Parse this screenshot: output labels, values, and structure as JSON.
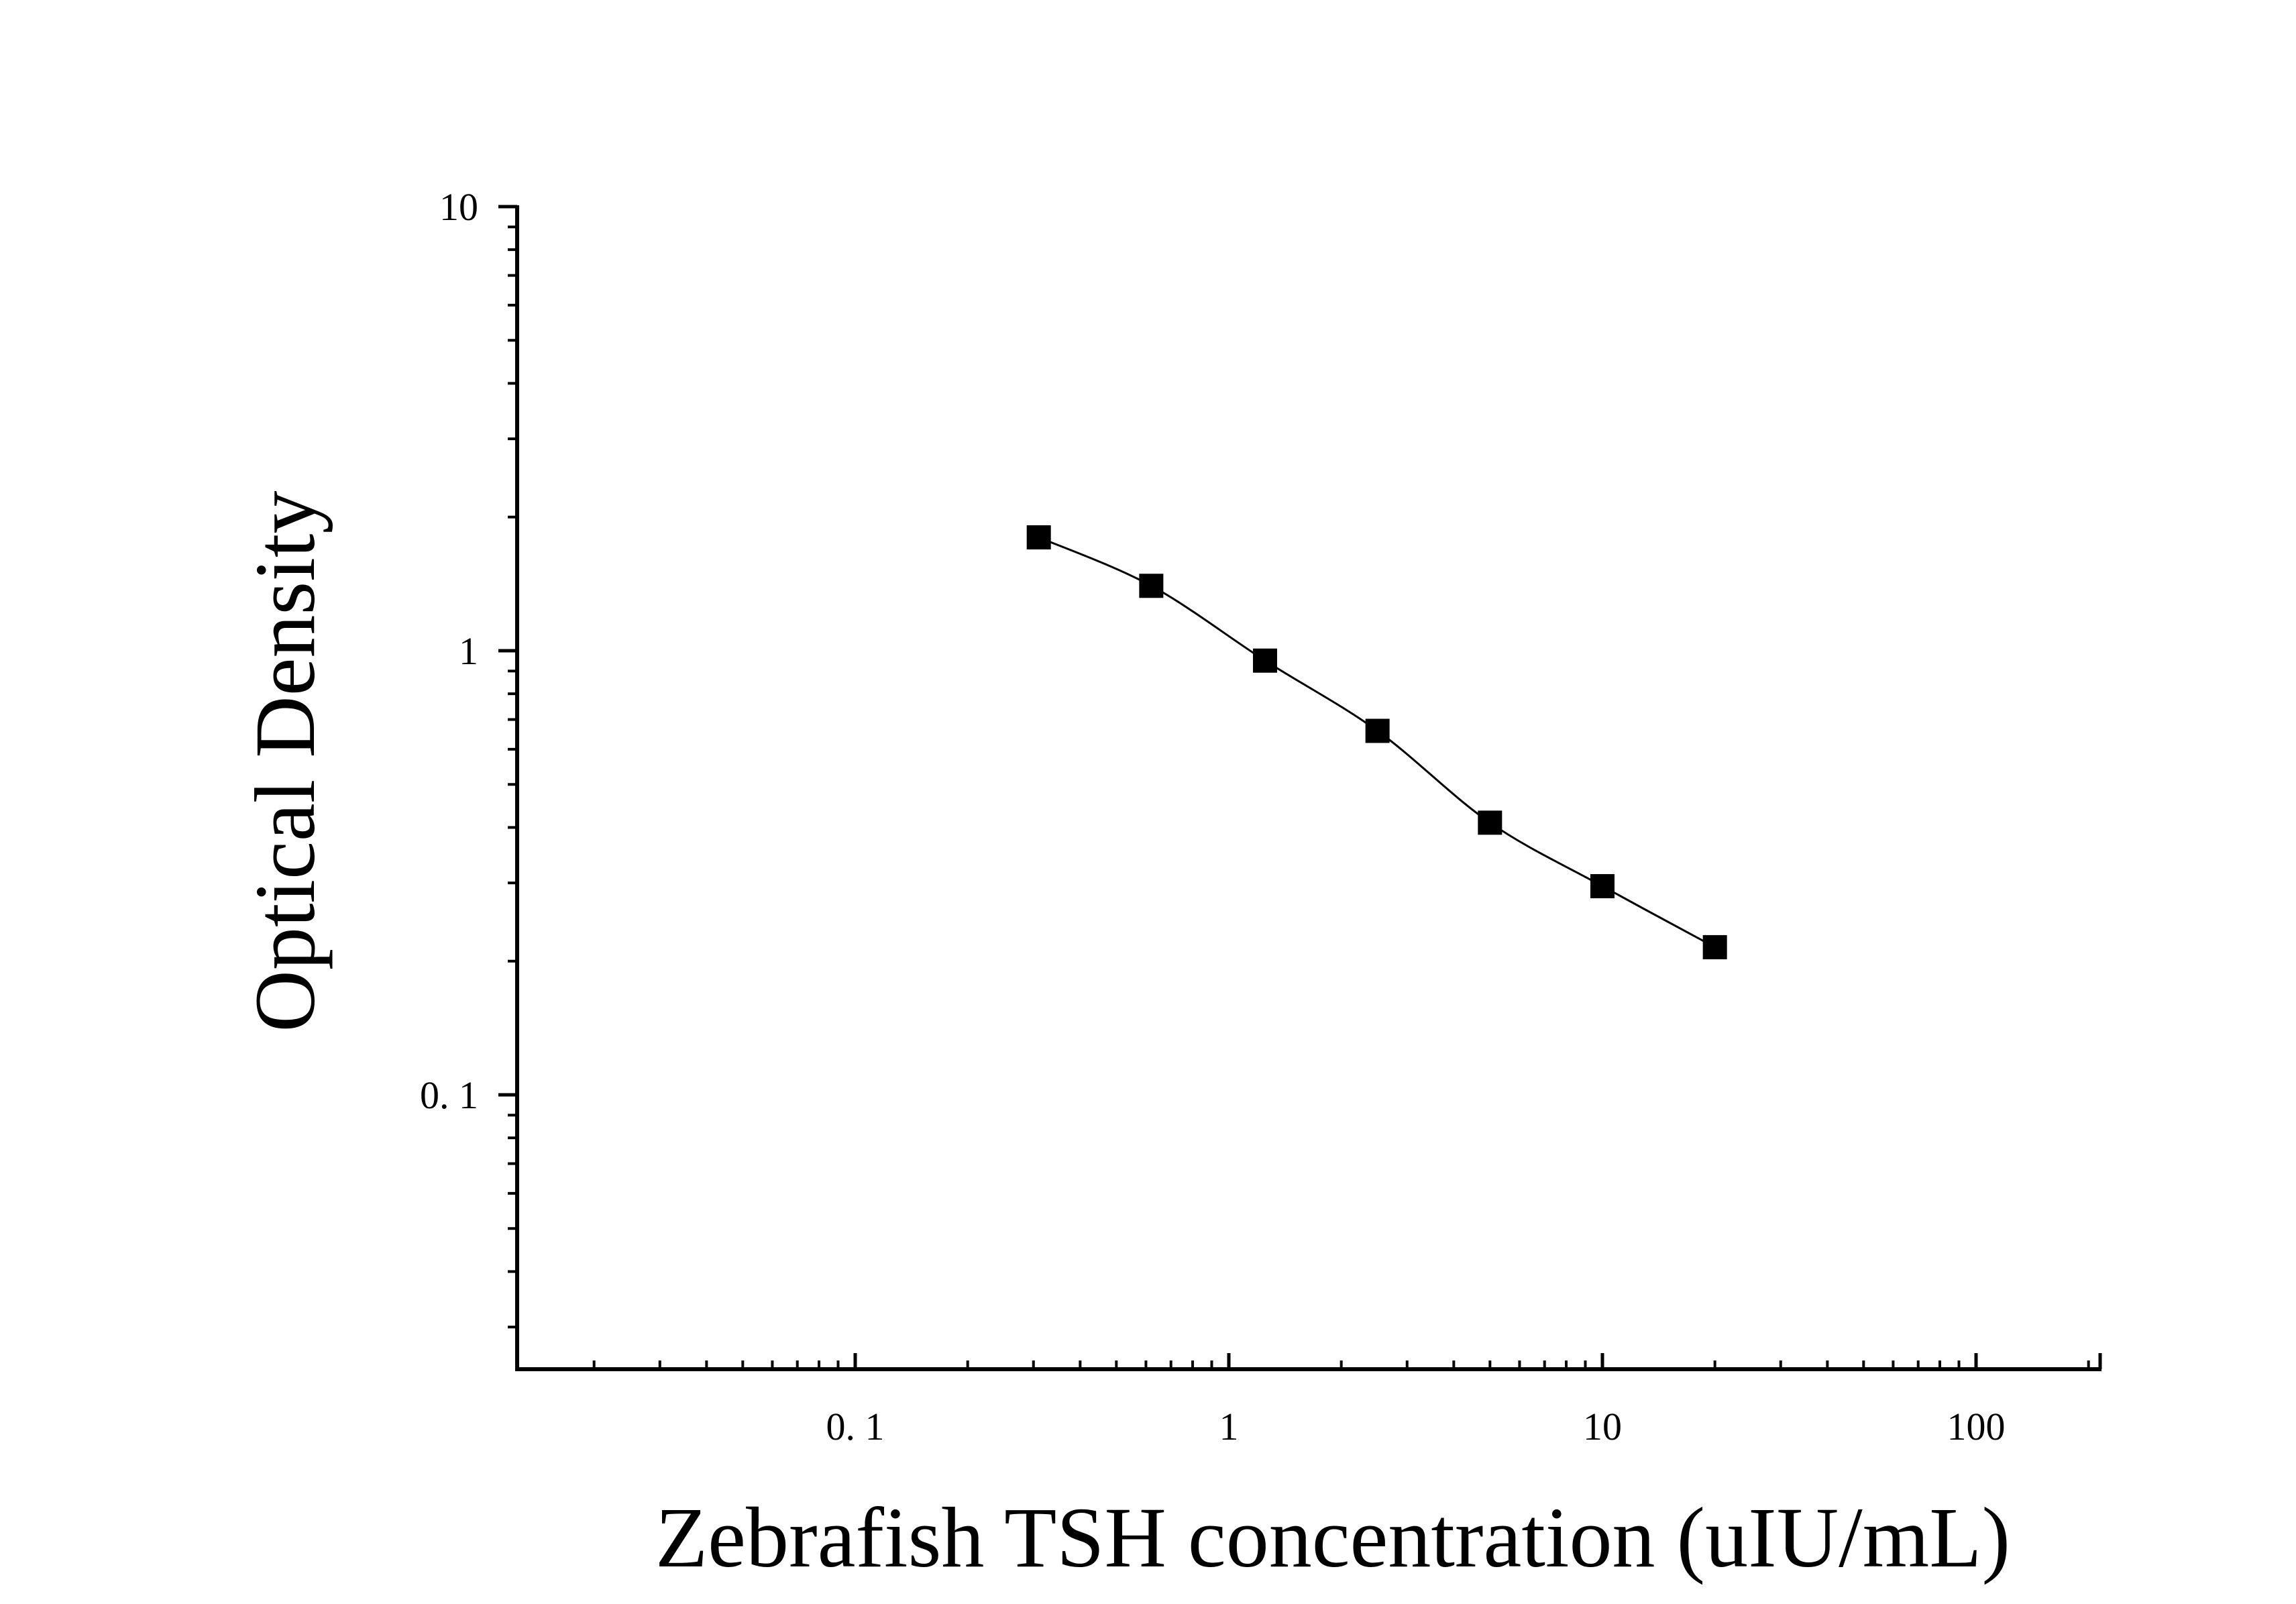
{
  "chart_data": {
    "type": "scatter",
    "title": "",
    "xlabel": "Zebrafish TSH concentration (uIU/mL)",
    "ylabel": "Optical Density",
    "x_scale": "log",
    "y_scale": "log",
    "xlim": [
      0.0125,
      200
    ],
    "ylim": [
      0.027,
      10
    ],
    "x_tick_labels": [
      {
        "value": 0.1,
        "label": "0. 1"
      },
      {
        "value": 1,
        "label": "1"
      },
      {
        "value": 10,
        "label": "10"
      },
      {
        "value": 100,
        "label": "100"
      }
    ],
    "y_tick_labels": [
      {
        "value": 0.1,
        "label": "0. 1"
      },
      {
        "value": 1,
        "label": "1"
      },
      {
        "value": 10,
        "label": "10"
      }
    ],
    "grid": false,
    "legend": "none",
    "series": [
      {
        "marker": "square",
        "color": "#000000",
        "fit_line": "smooth curve",
        "x": [
          0.31,
          0.62,
          1.25,
          2.5,
          5,
          10,
          20
        ],
        "y": [
          1.8,
          1.4,
          0.95,
          0.66,
          0.41,
          0.295,
          0.215
        ]
      }
    ]
  }
}
